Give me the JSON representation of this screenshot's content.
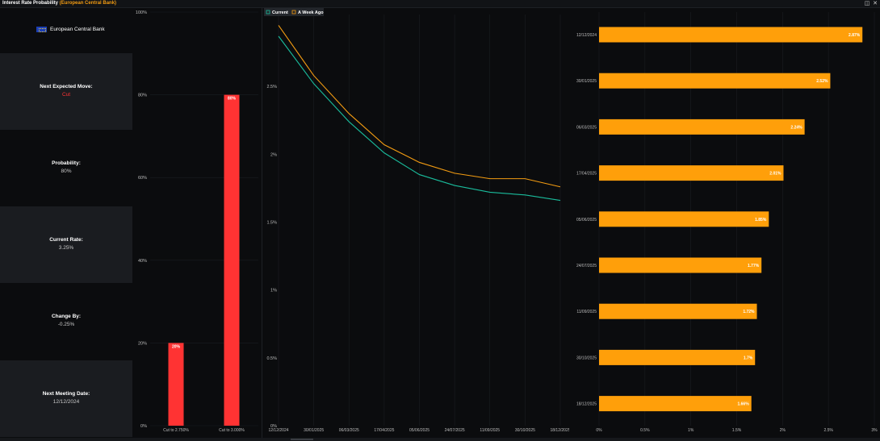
{
  "window": {
    "title": "Interest Rate Probability",
    "subtitle": "(European Central Bank)"
  },
  "sidebar": {
    "bank_name": "European Central Bank",
    "next_move_label": "Next Expected Move:",
    "next_move_value": "Cut",
    "probability_label": "Probability:",
    "probability_value": "80%",
    "current_rate_label": "Current Rate:",
    "current_rate_value": "3.25%",
    "change_by_label": "Change By:",
    "change_by_value": "-0.25%",
    "next_meeting_label": "Next Meeting Date:",
    "next_meeting_value": "12/12/2024"
  },
  "colors": {
    "probability_bar": "#ff3333",
    "current_line": "#1abc9c",
    "week_ago_line": "#f39c12",
    "rate_bar": "#ff9f0a"
  },
  "chart_data": [
    {
      "type": "bar",
      "categories": [
        "Cut to 2.750%",
        "Cut to 3.000%"
      ],
      "values": [
        20,
        80
      ],
      "data_labels": [
        "20%",
        "80%"
      ],
      "ylim": [
        0,
        100
      ],
      "yticks": [
        0,
        20,
        40,
        60,
        80,
        100
      ],
      "ytick_labels": [
        "0%",
        "20%",
        "40%",
        "60%",
        "80%",
        "100%"
      ]
    },
    {
      "type": "line",
      "x": [
        "12/12/2024",
        "30/01/2025",
        "06/03/2025",
        "17/04/2025",
        "05/06/2025",
        "24/07/2025",
        "11/09/2025",
        "30/10/2025",
        "18/12/2025"
      ],
      "series": [
        {
          "name": "Current",
          "values": [
            2.87,
            2.52,
            2.24,
            2.01,
            1.85,
            1.77,
            1.72,
            1.7,
            1.66
          ]
        },
        {
          "name": "A Week Ago",
          "values": [
            2.95,
            2.58,
            2.3,
            2.07,
            1.94,
            1.86,
            1.82,
            1.82,
            1.76
          ]
        }
      ],
      "ylim": [
        0,
        3
      ],
      "yticks": [
        0,
        0.5,
        1,
        1.5,
        2,
        2.5
      ],
      "ytick_labels": [
        "0%",
        "0.5%",
        "1%",
        "1.5%",
        "2%",
        "2.5%"
      ],
      "legend": "top-left"
    },
    {
      "type": "bar",
      "orientation": "horizontal",
      "categories": [
        "12/12/2024",
        "30/01/2025",
        "06/03/2025",
        "17/04/2025",
        "05/06/2025",
        "24/07/2025",
        "11/09/2025",
        "30/10/2025",
        "18/12/2025"
      ],
      "values": [
        2.87,
        2.52,
        2.24,
        2.01,
        1.85,
        1.77,
        1.72,
        1.7,
        1.66
      ],
      "data_labels": [
        "2.87%",
        "2.52%",
        "2.24%",
        "2.01%",
        "1.85%",
        "1.77%",
        "1.72%",
        "1.7%",
        "1.66%"
      ],
      "xlim": [
        0,
        3
      ],
      "xticks": [
        0,
        0.5,
        1,
        1.5,
        2,
        2.5,
        3
      ],
      "xtick_labels": [
        "0%",
        "0.5%",
        "1%",
        "1.5%",
        "2%",
        "2.5%",
        "3%"
      ]
    }
  ]
}
